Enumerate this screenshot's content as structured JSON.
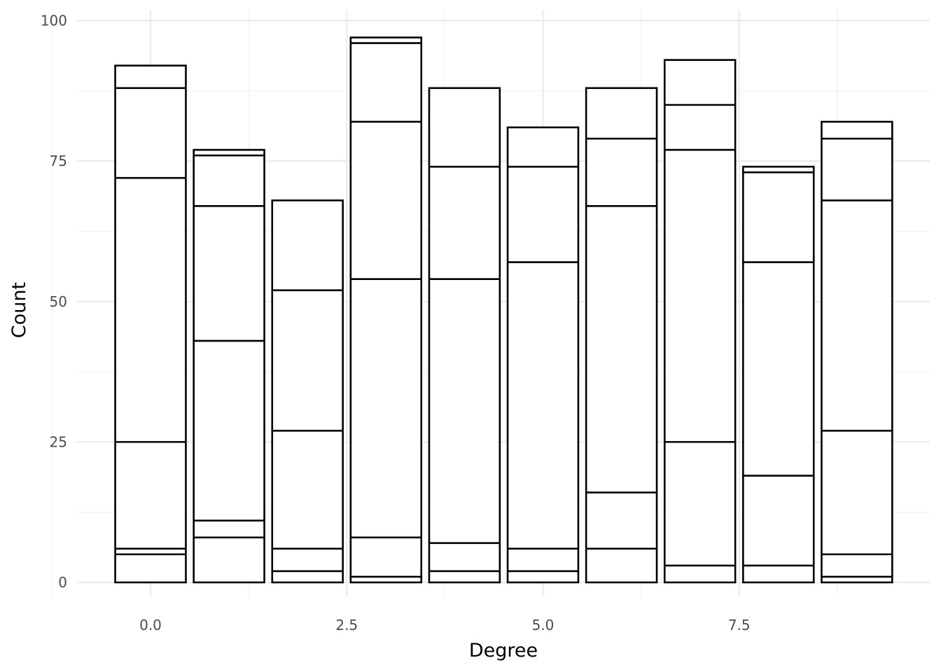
{
  "chart_data": {
    "type": "bar",
    "stacked": true,
    "xlabel": "Degree",
    "ylabel": "Count",
    "x": [
      0,
      1,
      2,
      3,
      4,
      5,
      6,
      7,
      8,
      9
    ],
    "xlim": [
      -1.25,
      9.75
    ],
    "ylim": [
      -3,
      101.5
    ],
    "x_ticks": [
      0.0,
      2.5,
      5.0,
      7.5
    ],
    "x_tick_labels": [
      "0.0",
      "2.5",
      "5.0",
      "7.5"
    ],
    "y_ticks": [
      0,
      25,
      50,
      75,
      100
    ],
    "y_tick_labels": [
      "0",
      "25",
      "50",
      "75",
      "100"
    ],
    "grid": true,
    "legend": "none",
    "bar_fill": "#ffffff",
    "bar_outline": "#000000",
    "stack_boundaries": [
      [
        5,
        6,
        25,
        72,
        88,
        92
      ],
      [
        8,
        11,
        43,
        67,
        76,
        77
      ],
      [
        2,
        6,
        27,
        52,
        68
      ],
      [
        1,
        8,
        54,
        82,
        96,
        97
      ],
      [
        2,
        7,
        54,
        74,
        88
      ],
      [
        2,
        6,
        57,
        74,
        81
      ],
      [
        6,
        16,
        67,
        79,
        88
      ],
      [
        3,
        25,
        77,
        85,
        93
      ],
      [
        3,
        19,
        57,
        73,
        74
      ],
      [
        1,
        5,
        27,
        68,
        79,
        82
      ]
    ],
    "totals": [
      92,
      77,
      68,
      97,
      88,
      81,
      88,
      93,
      74,
      82
    ]
  }
}
